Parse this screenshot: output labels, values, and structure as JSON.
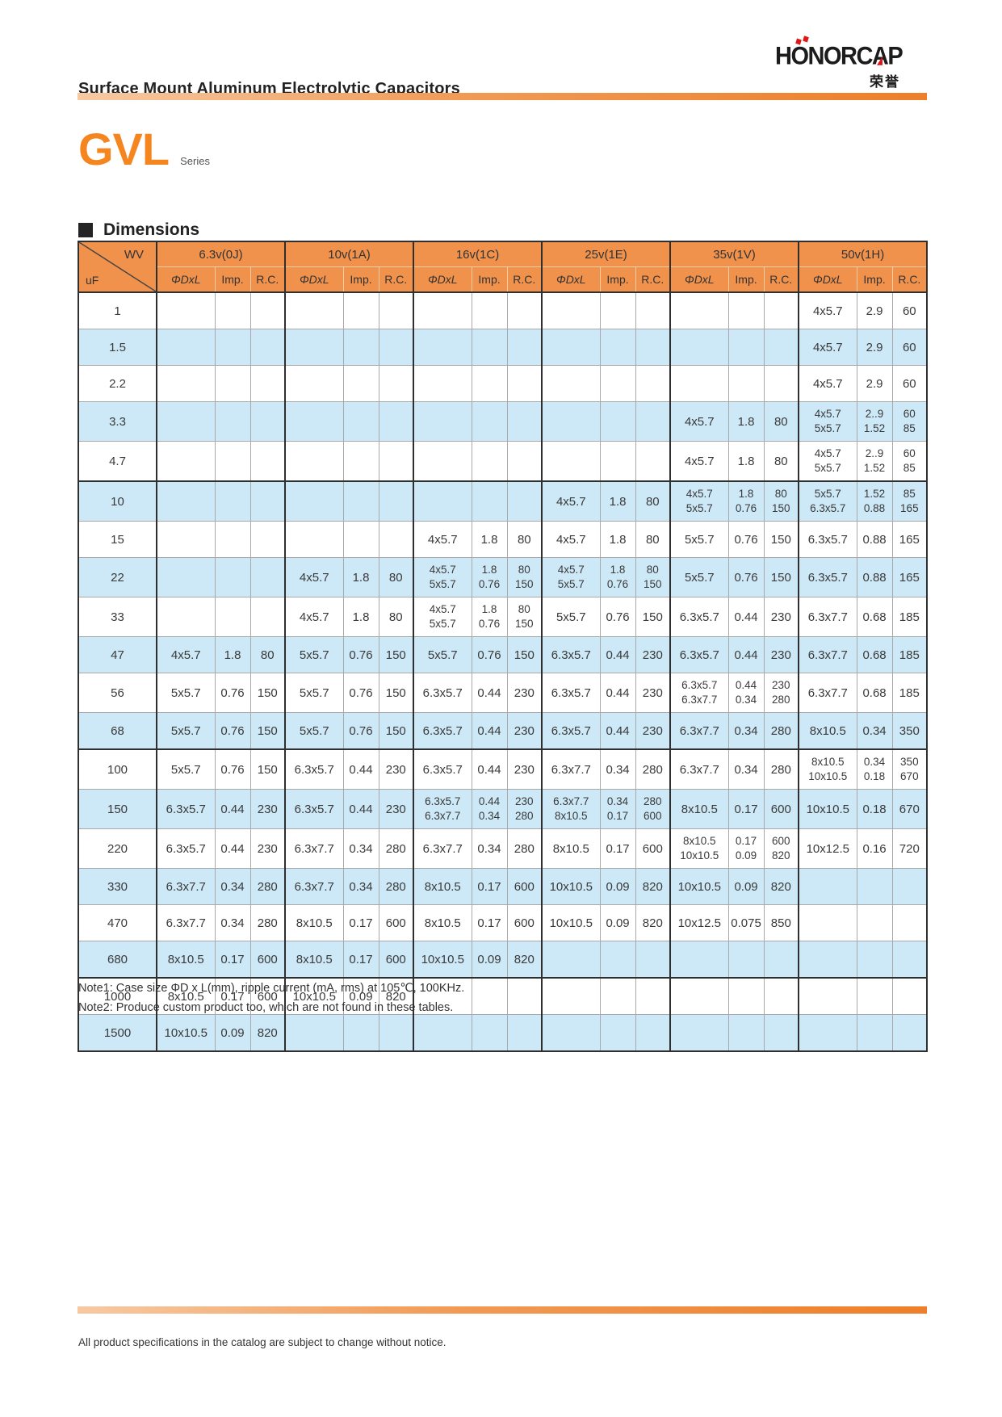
{
  "page": {
    "title": "Surface Mount Aluminum Electrolytic Capacitors",
    "footer": "All product specifications in the catalog are subject to change without notice."
  },
  "logo": {
    "text": "HONORCAP",
    "subtext": "荣誉"
  },
  "series": {
    "name": "GVL",
    "suffix": "Series"
  },
  "sections": {
    "dimensions": "Dimensions"
  },
  "colors": {
    "header_orange": "#F0914C",
    "stripe_blue": "#CDE8F6",
    "series_orange": "#F5861F",
    "logo_red": "#E01616",
    "rule_gradient_start": "#F7C9A2",
    "rule_gradient_end": "#ED7F2A"
  },
  "dimensions_table": {
    "corner": {
      "top_right": "WV",
      "bottom_left": "uF"
    },
    "voltage_groups": [
      "6.3v(0J)",
      "10v(1A)",
      "16v(1C)",
      "25v(1E)",
      "35v(1V)",
      "50v(1H)"
    ],
    "sub_headers": [
      "ΦDxL",
      "Imp.",
      "R.C."
    ],
    "rows": [
      {
        "uf": "1",
        "cells": [
          [
            "",
            "",
            ""
          ],
          [
            "",
            "",
            ""
          ],
          [
            "",
            "",
            ""
          ],
          [
            "",
            "",
            ""
          ],
          [
            "",
            "",
            ""
          ],
          [
            "4x5.7",
            "2.9",
            "60"
          ]
        ]
      },
      {
        "uf": "1.5",
        "cells": [
          [
            "",
            "",
            ""
          ],
          [
            "",
            "",
            ""
          ],
          [
            "",
            "",
            ""
          ],
          [
            "",
            "",
            ""
          ],
          [
            "",
            "",
            ""
          ],
          [
            "4x5.7",
            "2.9",
            "60"
          ]
        ]
      },
      {
        "uf": "2.2",
        "cells": [
          [
            "",
            "",
            ""
          ],
          [
            "",
            "",
            ""
          ],
          [
            "",
            "",
            ""
          ],
          [
            "",
            "",
            ""
          ],
          [
            "",
            "",
            ""
          ],
          [
            "4x5.7",
            "2.9",
            "60"
          ]
        ]
      },
      {
        "uf": "3.3",
        "cells": [
          [
            "",
            "",
            ""
          ],
          [
            "",
            "",
            ""
          ],
          [
            "",
            "",
            ""
          ],
          [
            "",
            "",
            ""
          ],
          [
            "4x5.7",
            "1.8",
            "80"
          ],
          [
            "4x5.7\n5x5.7",
            "2..9\n1.52",
            "60\n85"
          ]
        ]
      },
      {
        "uf": "4.7",
        "cells": [
          [
            "",
            "",
            ""
          ],
          [
            "",
            "",
            ""
          ],
          [
            "",
            "",
            ""
          ],
          [
            "",
            "",
            ""
          ],
          [
            "4x5.7",
            "1.8",
            "80"
          ],
          [
            "4x5.7\n5x5.7",
            "2..9\n1.52",
            "60\n85"
          ]
        ]
      },
      {
        "uf": "10",
        "cells": [
          [
            "",
            "",
            ""
          ],
          [
            "",
            "",
            ""
          ],
          [
            "",
            "",
            ""
          ],
          [
            "4x5.7",
            "1.8",
            "80"
          ],
          [
            "4x5.7\n5x5.7",
            "1.8\n0.76",
            "80\n150"
          ],
          [
            "5x5.7\n6.3x5.7",
            "1.52\n0.88",
            "85\n165"
          ]
        ]
      },
      {
        "uf": "15",
        "cells": [
          [
            "",
            "",
            ""
          ],
          [
            "",
            "",
            ""
          ],
          [
            "4x5.7",
            "1.8",
            "80"
          ],
          [
            "4x5.7",
            "1.8",
            "80"
          ],
          [
            "5x5.7",
            "0.76",
            "150"
          ],
          [
            "6.3x5.7",
            "0.88",
            "165"
          ]
        ]
      },
      {
        "uf": "22",
        "cells": [
          [
            "",
            "",
            ""
          ],
          [
            "4x5.7",
            "1.8",
            "80"
          ],
          [
            "4x5.7\n5x5.7",
            "1.8\n0.76",
            "80\n150"
          ],
          [
            "4x5.7\n5x5.7",
            "1.8\n0.76",
            "80\n150"
          ],
          [
            "5x5.7",
            "0.76",
            "150"
          ],
          [
            "6.3x5.7",
            "0.88",
            "165"
          ]
        ]
      },
      {
        "uf": "33",
        "cells": [
          [
            "",
            "",
            ""
          ],
          [
            "4x5.7",
            "1.8",
            "80"
          ],
          [
            "4x5.7\n5x5.7",
            "1.8\n0.76",
            "80\n150"
          ],
          [
            "5x5.7",
            "0.76",
            "150"
          ],
          [
            "6.3x5.7",
            "0.44",
            "230"
          ],
          [
            "6.3x7.7",
            "0.68",
            "185"
          ]
        ]
      },
      {
        "uf": "47",
        "cells": [
          [
            "4x5.7",
            "1.8",
            "80"
          ],
          [
            "5x5.7",
            "0.76",
            "150"
          ],
          [
            "5x5.7",
            "0.76",
            "150"
          ],
          [
            "6.3x5.7",
            "0.44",
            "230"
          ],
          [
            "6.3x5.7",
            "0.44",
            "230"
          ],
          [
            "6.3x7.7",
            "0.68",
            "185"
          ]
        ]
      },
      {
        "uf": "56",
        "cells": [
          [
            "5x5.7",
            "0.76",
            "150"
          ],
          [
            "5x5.7",
            "0.76",
            "150"
          ],
          [
            "6.3x5.7",
            "0.44",
            "230"
          ],
          [
            "6.3x5.7",
            "0.44",
            "230"
          ],
          [
            "6.3x5.7\n6.3x7.7",
            "0.44\n0.34",
            "230\n280"
          ],
          [
            "6.3x7.7",
            "0.68",
            "185"
          ]
        ]
      },
      {
        "uf": "68",
        "cells": [
          [
            "5x5.7",
            "0.76",
            "150"
          ],
          [
            "5x5.7",
            "0.76",
            "150"
          ],
          [
            "6.3x5.7",
            "0.44",
            "230"
          ],
          [
            "6.3x5.7",
            "0.44",
            "230"
          ],
          [
            "6.3x7.7",
            "0.34",
            "280"
          ],
          [
            "8x10.5",
            "0.34",
            "350"
          ]
        ]
      },
      {
        "uf": "100",
        "cells": [
          [
            "5x5.7",
            "0.76",
            "150"
          ],
          [
            "6.3x5.7",
            "0.44",
            "230"
          ],
          [
            "6.3x5.7",
            "0.44",
            "230"
          ],
          [
            "6.3x7.7",
            "0.34",
            "280"
          ],
          [
            "6.3x7.7",
            "0.34",
            "280"
          ],
          [
            "8x10.5\n10x10.5",
            "0.34\n0.18",
            "350\n670"
          ]
        ]
      },
      {
        "uf": "150",
        "cells": [
          [
            "6.3x5.7",
            "0.44",
            "230"
          ],
          [
            "6.3x5.7",
            "0.44",
            "230"
          ],
          [
            "6.3x5.7\n6.3x7.7",
            "0.44\n0.34",
            "230\n280"
          ],
          [
            "6.3x7.7\n8x10.5",
            "0.34\n0.17",
            "280\n600"
          ],
          [
            "8x10.5",
            "0.17",
            "600"
          ],
          [
            "10x10.5",
            "0.18",
            "670"
          ]
        ]
      },
      {
        "uf": "220",
        "cells": [
          [
            "6.3x5.7",
            "0.44",
            "230"
          ],
          [
            "6.3x7.7",
            "0.34",
            "280"
          ],
          [
            "6.3x7.7",
            "0.34",
            "280"
          ],
          [
            "8x10.5",
            "0.17",
            "600"
          ],
          [
            "8x10.5\n10x10.5",
            "0.17\n0.09",
            "600\n820"
          ],
          [
            "10x12.5",
            "0.16",
            "720"
          ]
        ]
      },
      {
        "uf": "330",
        "cells": [
          [
            "6.3x7.7",
            "0.34",
            "280"
          ],
          [
            "6.3x7.7",
            "0.34",
            "280"
          ],
          [
            "8x10.5",
            "0.17",
            "600"
          ],
          [
            "10x10.5",
            "0.09",
            "820"
          ],
          [
            "10x10.5",
            "0.09",
            "820"
          ],
          [
            "",
            "",
            ""
          ]
        ]
      },
      {
        "uf": "470",
        "cells": [
          [
            "6.3x7.7",
            "0.34",
            "280"
          ],
          [
            "8x10.5",
            "0.17",
            "600"
          ],
          [
            "8x10.5",
            "0.17",
            "600"
          ],
          [
            "10x10.5",
            "0.09",
            "820"
          ],
          [
            "10x12.5",
            "0.075",
            "850"
          ],
          [
            "",
            "",
            ""
          ]
        ]
      },
      {
        "uf": "680",
        "cells": [
          [
            "8x10.5",
            "0.17",
            "600"
          ],
          [
            "8x10.5",
            "0.17",
            "600"
          ],
          [
            "10x10.5",
            "0.09",
            "820"
          ],
          [
            "",
            "",
            ""
          ],
          [
            "",
            "",
            ""
          ],
          [
            "",
            "",
            ""
          ]
        ]
      },
      {
        "uf": "1000",
        "cells": [
          [
            "8x10.5",
            "0.17",
            "600"
          ],
          [
            "10x10.5",
            "0.09",
            "820"
          ],
          [
            "",
            "",
            ""
          ],
          [
            "",
            "",
            ""
          ],
          [
            "",
            "",
            ""
          ],
          [
            "",
            "",
            ""
          ]
        ]
      },
      {
        "uf": "1500",
        "cells": [
          [
            "10x10.5",
            "0.09",
            "820"
          ],
          [
            "",
            "",
            ""
          ],
          [
            "",
            "",
            ""
          ],
          [
            "",
            "",
            ""
          ],
          [
            "",
            "",
            ""
          ],
          [
            "",
            "",
            ""
          ]
        ]
      }
    ]
  },
  "notes": [
    "Note1: Case size ΦD x L(mm), ripple current (mA, rms) at 105℃, 100KHz.",
    "Note2: Produce custom product too, which are not found in these tables."
  ]
}
